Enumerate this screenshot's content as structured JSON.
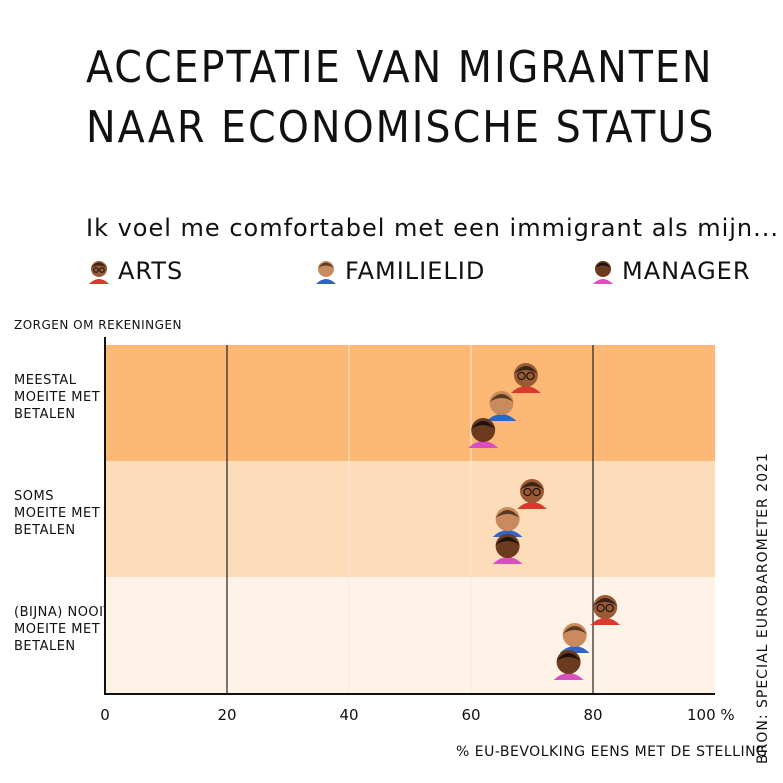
{
  "title_line1": "Acceptatie van migranten",
  "title_line2": "naar economische status",
  "subtitle": "Ik voel me comfortabel met een immigrant als mijn...",
  "source": "Bron: Special Eurobarometer 2021",
  "icons": {
    "arts": "doctor-avatar-icon",
    "familielid": "family-member-avatar-icon",
    "manager": "manager-avatar-icon"
  },
  "colors": {
    "arts": "#d93a2b",
    "familielid": "#2f64c8",
    "manager": "#d94fbf",
    "band1": "#fdb876",
    "band2": "#fddcba",
    "band3": "#fff2e6"
  },
  "chart_data": {
    "type": "scatter",
    "title": "Acceptatie van migranten naar economische status",
    "subtitle": "Ik voel me comfortabel met een immigrant als mijn...",
    "ylabel": "Zorgen om rekeningen",
    "xlabel": "% EU-bevolking eens met de stelling",
    "xlim": [
      0,
      100
    ],
    "x_ticks": [
      "0",
      "20",
      "40",
      "60",
      "80",
      "100 %"
    ],
    "grid": "vertical lines at 20 and 80",
    "legend_position": "top",
    "categories": [
      "Meestal moeite met betalen",
      "Soms moeite met betalen",
      "(Bijna) nooit moeite met betalen"
    ],
    "category_labels": [
      [
        "Meestal",
        "moeite met",
        "betalen"
      ],
      [
        "Soms",
        "moeite met",
        "betalen"
      ],
      [
        "(Bijna) nooit",
        "moeite met",
        "betalen"
      ]
    ],
    "series": [
      {
        "name": "Arts",
        "values": [
          69,
          70,
          82
        ]
      },
      {
        "name": "Familielid",
        "values": [
          65,
          66,
          77
        ]
      },
      {
        "name": "Manager",
        "values": [
          62,
          66,
          76
        ]
      }
    ]
  }
}
